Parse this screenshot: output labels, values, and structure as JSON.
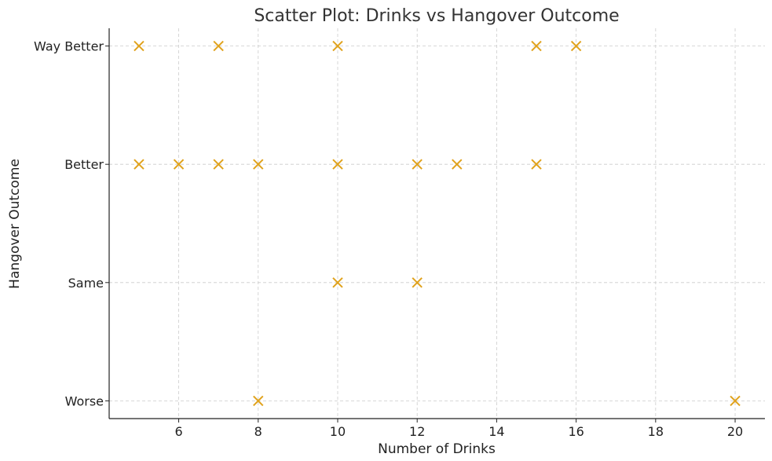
{
  "chart_data": {
    "type": "scatter",
    "title": "Scatter Plot: Drinks vs Hangover Outcome",
    "xlabel": "Number of Drinks",
    "ylabel": "Hangover Outcome",
    "xlim": [
      4.25,
      20.75
    ],
    "x_ticks": [
      6,
      8,
      10,
      12,
      14,
      16,
      18,
      20
    ],
    "y_categories": [
      "Worse",
      "Same",
      "Better",
      "Way Better"
    ],
    "ylim": [
      -0.15,
      3.15
    ],
    "marker": "x",
    "marker_color": "#E0A21C",
    "grid": true,
    "points": [
      {
        "x": 5,
        "y": "Way Better"
      },
      {
        "x": 7,
        "y": "Way Better"
      },
      {
        "x": 10,
        "y": "Way Better"
      },
      {
        "x": 15,
        "y": "Way Better"
      },
      {
        "x": 16,
        "y": "Way Better"
      },
      {
        "x": 5,
        "y": "Better"
      },
      {
        "x": 6,
        "y": "Better"
      },
      {
        "x": 7,
        "y": "Better"
      },
      {
        "x": 8,
        "y": "Better"
      },
      {
        "x": 10,
        "y": "Better"
      },
      {
        "x": 12,
        "y": "Better"
      },
      {
        "x": 13,
        "y": "Better"
      },
      {
        "x": 15,
        "y": "Better"
      },
      {
        "x": 10,
        "y": "Same"
      },
      {
        "x": 12,
        "y": "Same"
      },
      {
        "x": 8,
        "y": "Worse"
      },
      {
        "x": 20,
        "y": "Worse"
      }
    ]
  }
}
